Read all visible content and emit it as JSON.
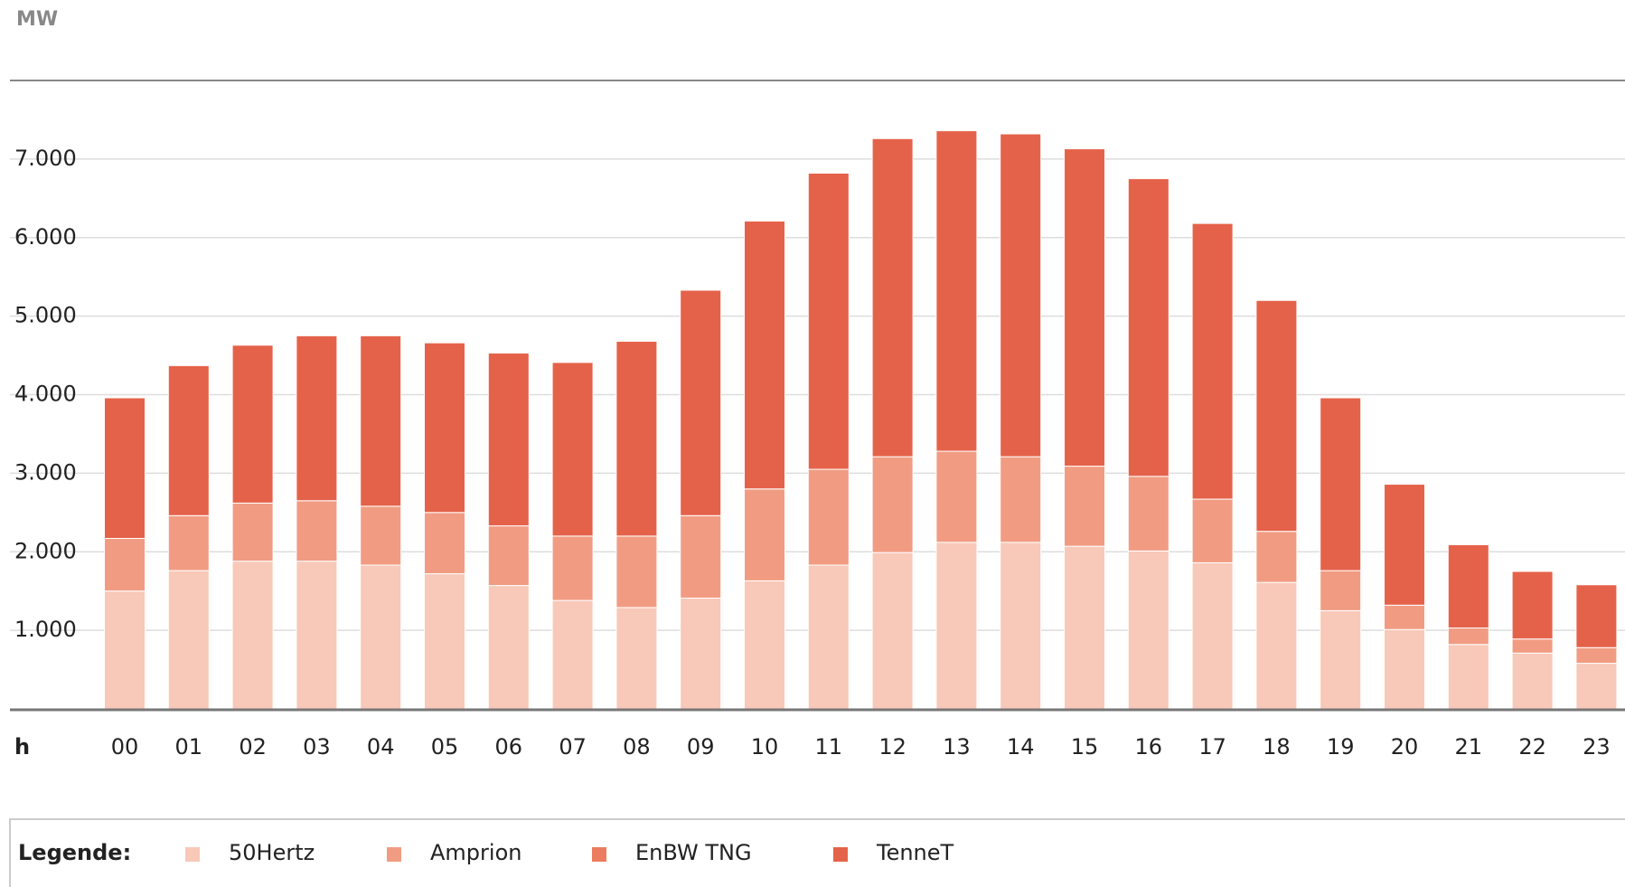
{
  "chart_data": {
    "type": "stacked-bar",
    "y_label": "MW",
    "x_label": "h",
    "legend_title": "Legende:",
    "categories": [
      "00",
      "01",
      "02",
      "03",
      "04",
      "05",
      "06",
      "07",
      "08",
      "09",
      "10",
      "11",
      "12",
      "13",
      "14",
      "15",
      "16",
      "17",
      "18",
      "19",
      "20",
      "21",
      "22",
      "23"
    ],
    "series": [
      {
        "name": "50Hertz",
        "color": "#f8c8b8",
        "values": [
          1500,
          1760,
          1880,
          1880,
          1830,
          1720,
          1570,
          1380,
          1290,
          1410,
          1630,
          1830,
          1990,
          2120,
          2120,
          2070,
          2010,
          1860,
          1610,
          1250,
          1010,
          820,
          710,
          580
        ]
      },
      {
        "name": "Amprion",
        "color": "#f19c82",
        "values": [
          670,
          700,
          740,
          770,
          750,
          780,
          760,
          820,
          910,
          1050,
          1170,
          1220,
          1220,
          1160,
          1090,
          1020,
          950,
          810,
          650,
          510,
          310,
          210,
          180,
          200
        ]
      },
      {
        "name": "EnBW TNG",
        "color": "#ec7c5f",
        "values": [
          0,
          0,
          0,
          0,
          0,
          0,
          0,
          0,
          0,
          0,
          0,
          0,
          0,
          0,
          0,
          0,
          0,
          0,
          0,
          0,
          0,
          0,
          0,
          0
        ]
      },
      {
        "name": "TenneT",
        "color": "#e5624a",
        "values": [
          1790,
          1910,
          2010,
          2100,
          2170,
          2160,
          2200,
          2210,
          2480,
          2870,
          3410,
          3770,
          4050,
          4080,
          4110,
          4040,
          3790,
          3510,
          2940,
          2200,
          1540,
          1060,
          860,
          800
        ]
      }
    ],
    "ylim": [
      0,
      8000
    ],
    "yticks": [
      {
        "value": 1000,
        "label": "1.000"
      },
      {
        "value": 2000,
        "label": "2.000"
      },
      {
        "value": 3000,
        "label": "3.000"
      },
      {
        "value": 4000,
        "label": "4.000"
      },
      {
        "value": 5000,
        "label": "5.000"
      },
      {
        "value": 6000,
        "label": "6.000"
      },
      {
        "value": 7000,
        "label": "7.000"
      }
    ],
    "grid": true
  }
}
